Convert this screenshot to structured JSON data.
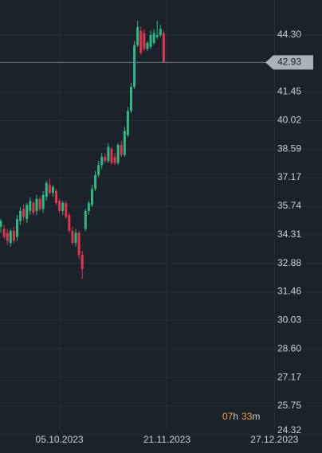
{
  "chart_data": {
    "type": "candlestick",
    "open": [
      34.7,
      34.6,
      34.4,
      33.9,
      34.5,
      34.2,
      35.0,
      35.6,
      35.1,
      35.5,
      35.9,
      35.5,
      36.1,
      35.6,
      36.2,
      36.8,
      36.4,
      36.5,
      36.0,
      35.5,
      35.9,
      35.3,
      34.5,
      33.9,
      34.4,
      33.3,
      34.6,
      35.5,
      35.8,
      36.6,
      37.3,
      37.8,
      38.2,
      38.0,
      38.6,
      38.2,
      37.9,
      38.8,
      38.3,
      39.3,
      40.5,
      41.7,
      43.8,
      44.5,
      44.4,
      43.6,
      43.7,
      43.9,
      44.2,
      44.3,
      44.4
    ],
    "high": [
      35.1,
      34.8,
      34.6,
      34.6,
      34.7,
      35.3,
      35.7,
      35.8,
      35.9,
      36.2,
      36.0,
      36.3,
      36.2,
      36.5,
      37.0,
      37.1,
      36.8,
      36.6,
      36.1,
      36.0,
      36.0,
      35.4,
      34.7,
      34.6,
      34.5,
      33.5,
      35.6,
      36.0,
      36.8,
      37.5,
      38.0,
      38.4,
      38.4,
      38.9,
      38.7,
      38.4,
      38.9,
      39.0,
      39.7,
      40.7,
      41.9,
      44.0,
      45.0,
      44.7,
      44.6,
      44.0,
      44.5,
      44.6,
      45.0,
      44.8,
      44.5
    ],
    "low": [
      34.4,
      34.1,
      33.8,
      33.7,
      33.9,
      34.0,
      34.8,
      35.0,
      34.9,
      35.3,
      35.3,
      35.3,
      35.5,
      35.4,
      36.0,
      36.3,
      36.2,
      35.8,
      35.4,
      35.3,
      35.1,
      34.4,
      33.8,
      33.7,
      33.1,
      32.1,
      34.5,
      35.3,
      35.7,
      36.5,
      37.2,
      37.6,
      37.9,
      37.9,
      37.8,
      37.8,
      37.8,
      38.2,
      38.2,
      39.2,
      40.4,
      41.6,
      43.7,
      43.3,
      43.5,
      43.5,
      43.6,
      43.8,
      44.1,
      44.2,
      42.9
    ],
    "close": [
      35.0,
      34.2,
      34.0,
      34.5,
      34.0,
      35.1,
      35.5,
      35.2,
      35.8,
      36.0,
      35.4,
      36.1,
      35.6,
      36.3,
      36.9,
      36.4,
      36.7,
      35.9,
      35.5,
      35.9,
      35.2,
      34.5,
      33.9,
      34.4,
      33.3,
      32.6,
      35.5,
      35.9,
      36.6,
      37.3,
      37.8,
      38.2,
      38.0,
      38.7,
      37.9,
      37.9,
      38.8,
      38.3,
      39.5,
      40.5,
      41.7,
      43.8,
      44.7,
      43.4,
      43.6,
      43.9,
      44.3,
      44.4,
      44.3,
      44.6,
      42.93
    ],
    "up_color": "#2cb982",
    "down_color": "#e2334f",
    "xlim": [
      -0.25,
      98.6
    ],
    "ylim": [
      23.83,
      46.05
    ],
    "xticks": [
      {
        "value": 18,
        "label": "05.10.2023"
      },
      {
        "value": 51,
        "label": "21.11.2023"
      },
      {
        "value": 84,
        "label": "27.12.2023"
      }
    ],
    "yticks": [
      {
        "value": 44.3,
        "label": "44.30"
      },
      41.45,
      40.02,
      38.59,
      37.17,
      35.74,
      34.31,
      32.88,
      31.46,
      30.03,
      {
        "value": 28.6,
        "label": "28.60"
      },
      27.17,
      25.75,
      24.32
    ],
    "grid": true,
    "last_price": 42.93,
    "countdown": [
      "07",
      "h",
      "33",
      "m"
    ]
  }
}
